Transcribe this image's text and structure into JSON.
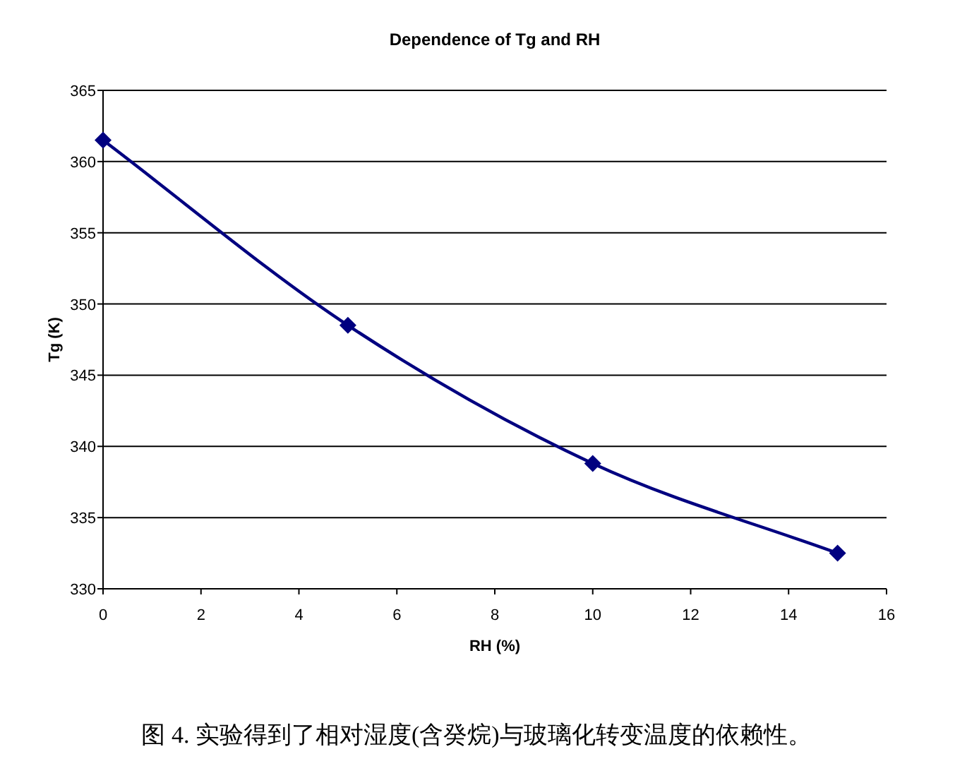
{
  "chart_data": {
    "type": "line",
    "title": "Dependence of Tg and RH",
    "xlabel": "RH (%)",
    "ylabel": "Tg (K)",
    "x": [
      0,
      5,
      10,
      15
    ],
    "series": [
      {
        "color": "#000080",
        "values": [
          361.5,
          348.5,
          338.8,
          332.5
        ]
      }
    ],
    "xlim": [
      0,
      16
    ],
    "xticks": [
      0,
      2,
      4,
      6,
      8,
      10,
      12,
      14,
      16
    ],
    "ylim": [
      330,
      365
    ],
    "yticks": [
      330,
      335,
      340,
      345,
      350,
      355,
      360,
      365
    ],
    "grid": "y",
    "marker": "diamond",
    "line_style": "solid",
    "annotations": [
      "图 4. 实验得到了相对湿度(含癸烷)与玻璃化转变温度的依赖性。"
    ]
  }
}
